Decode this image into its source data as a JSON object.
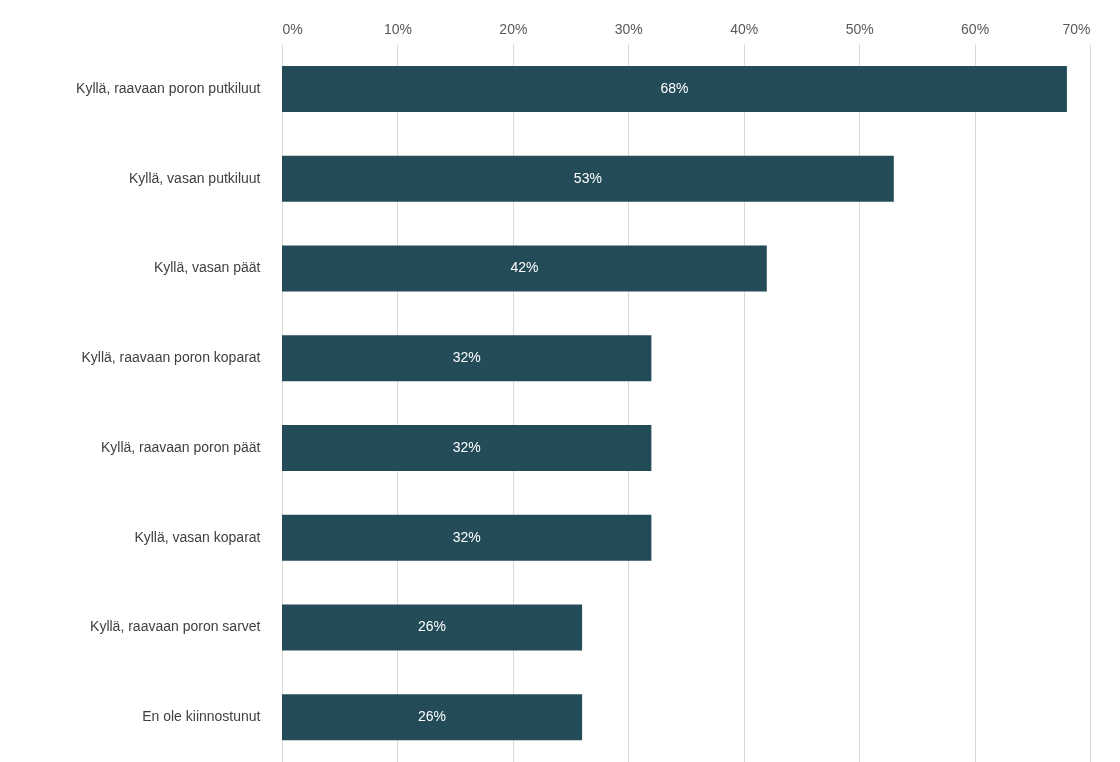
{
  "chart_data": {
    "type": "bar",
    "orientation": "horizontal",
    "categories": [
      "Kyllä, raavaan poron putkiluut",
      "Kyllä, vasan putkiluut",
      "Kyllä, vasan päät",
      "Kyllä, raavaan poron koparat",
      "Kyllä, raavaan poron päät",
      "Kyllä, vasan koparat",
      "Kyllä, raavaan poron sarvet",
      "En ole kiinnostunut"
    ],
    "values": [
      68,
      53,
      42,
      32,
      32,
      32,
      26,
      26
    ],
    "value_labels": [
      "68%",
      "53%",
      "42%",
      "32%",
      "32%",
      "32%",
      "26%",
      "26%"
    ],
    "color": "#234b58",
    "xlim": [
      0,
      70
    ],
    "xticks": [
      {
        "value": 0,
        "label": "0%"
      },
      {
        "value": 10,
        "label": "10%"
      },
      {
        "value": 20,
        "label": "20%"
      },
      {
        "value": 30,
        "label": "30%"
      },
      {
        "value": 40,
        "label": "40%"
      },
      {
        "value": 50,
        "label": "50%"
      },
      {
        "value": 60,
        "label": "60%"
      },
      {
        "value": 70,
        "label": "70%"
      }
    ],
    "grid": "x"
  }
}
